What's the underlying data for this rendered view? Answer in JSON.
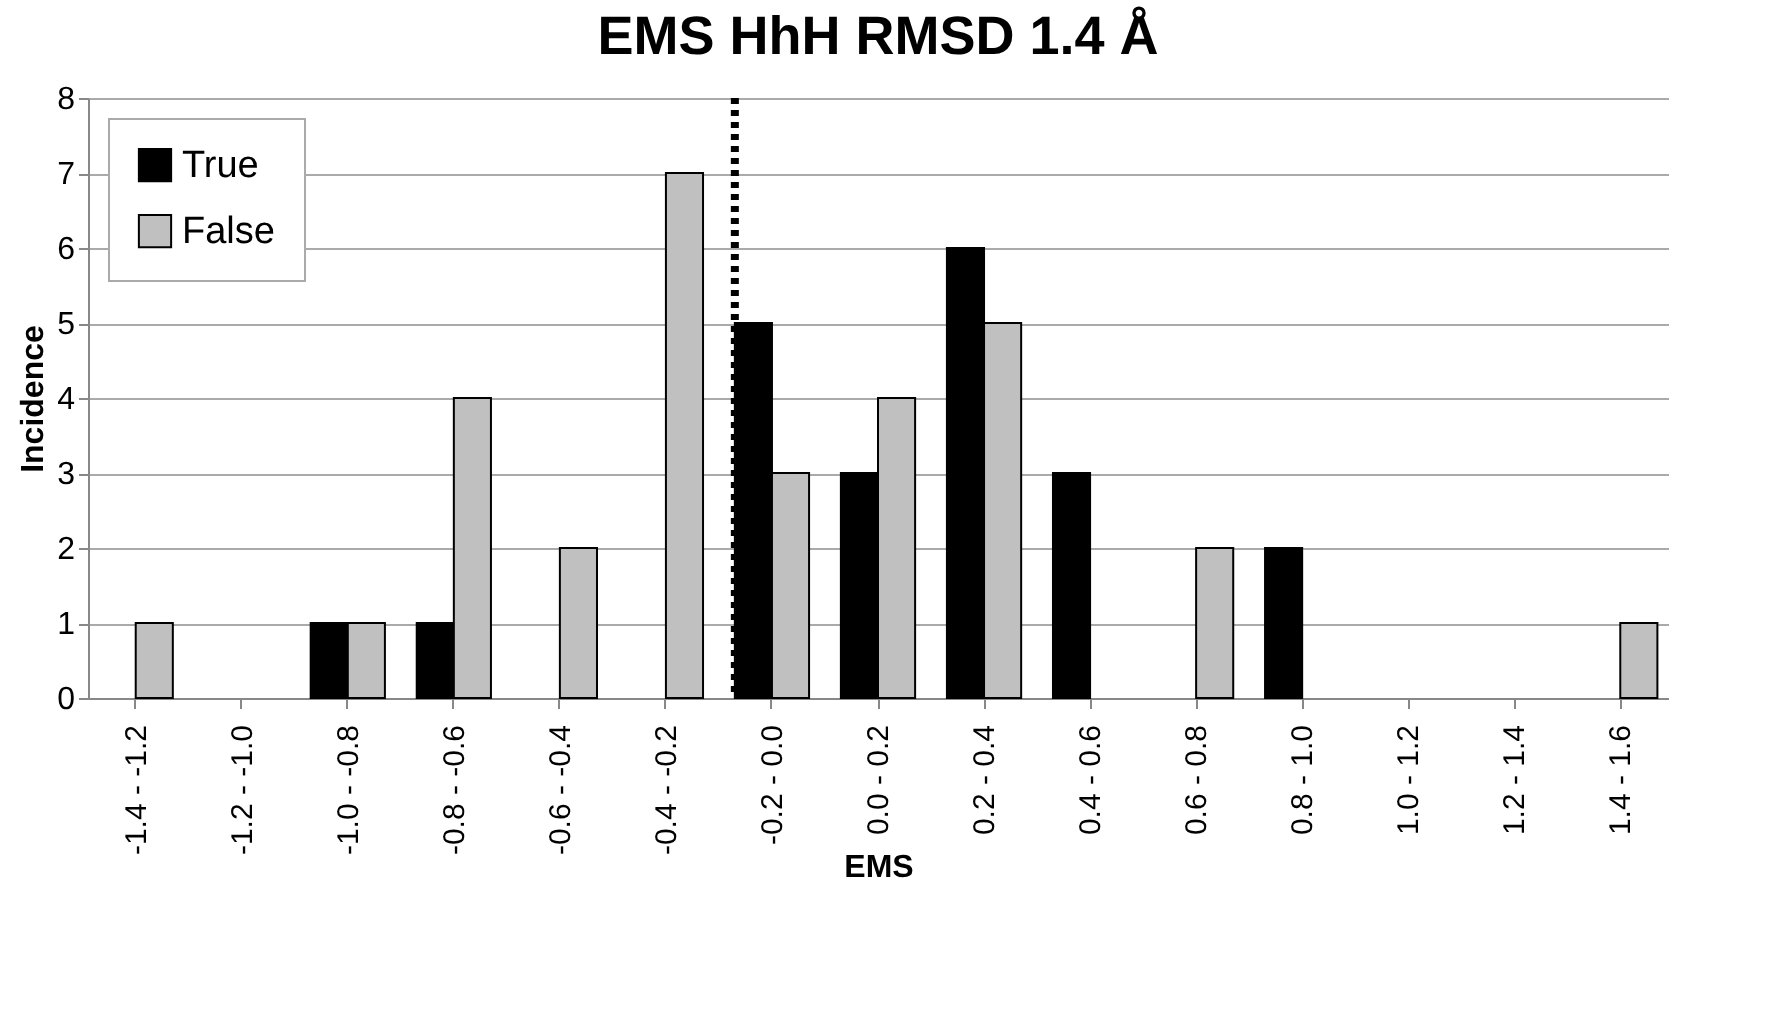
{
  "chart_data": {
    "type": "bar",
    "title": "EMS HhH RMSD 1.4 Å",
    "xlabel": "EMS",
    "ylabel": "Incidence",
    "categories": [
      "-1.4 - -1.2",
      "-1.2 - -1.0",
      "-1.0 - -0.8",
      "-0.8 - -0.6",
      "-0.6 - -0.4",
      "-0.4 - -0.2",
      "-0.2 - 0.0",
      "0.0 - 0.2",
      "0.2 - 0.4",
      "0.4 - 0.6",
      "0.6 - 0.8",
      "0.8 - 1.0",
      "1.0 - 1.2",
      "1.2 - 1.4",
      "1.4 - 1.6"
    ],
    "series": [
      {
        "name": "True",
        "color": "#000000",
        "values": [
          0,
          0,
          1,
          1,
          0,
          0,
          5,
          3,
          6,
          3,
          0,
          2,
          0,
          0,
          0
        ]
      },
      {
        "name": "False",
        "color": "#c0c0c0",
        "values": [
          1,
          0,
          1,
          4,
          2,
          7,
          3,
          4,
          5,
          0,
          2,
          0,
          0,
          0,
          1
        ]
      }
    ],
    "ylim": [
      0,
      8
    ],
    "yticks": [
      0,
      1,
      2,
      3,
      4,
      5,
      6,
      7,
      8
    ],
    "grid": "y",
    "legend": "top left",
    "ref_lines": [
      {
        "axis": "x",
        "value": "-0.2 - 0.0",
        "line_style": "dotted",
        "color": "#000000"
      }
    ]
  }
}
